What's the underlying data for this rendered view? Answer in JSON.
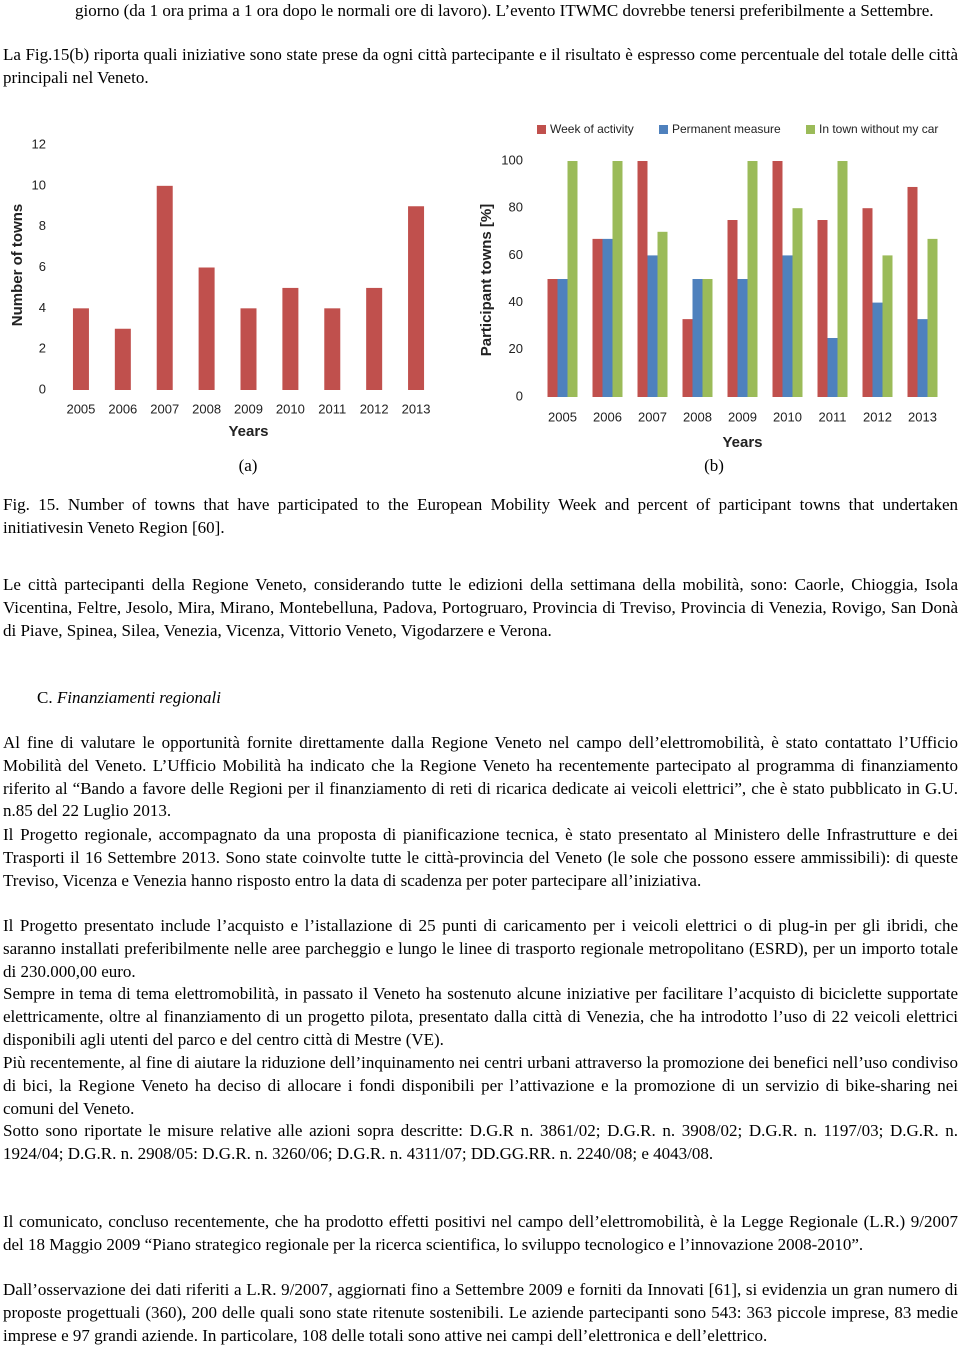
{
  "document": {
    "paragraphs_top": [
      "giorno (da 1 ora prima a 1 ora dopo le normali ore di lavoro). L’evento ITWMC dovrebbe tenersi preferibilmente a Settembre.",
      "La Fig.15(b) riporta quali iniziative sono state prese da ogni città partecipante e il risultato è espresso come percentuale del totale delle città principali nel Veneto."
    ],
    "caption": "Fig. 15. Number of towns that have participated to the European Mobility Week and percent of participant towns that undertaken initiativesin Veneto Region [60].",
    "paragraph_cities": "Le città partecipanti della Regione Veneto, considerando tutte le edizioni della settimana della mobilità, sono: Caorle, Chioggia, Isola Vicentina, Feltre, Jesolo, Mira, Mirano, Montebelluna, Padova, Portogruaro, Provincia di Treviso, Provincia di Venezia, Rovigo, San Donà di Piave, Spinea, Silea, Venezia, Vicenza, Vittorio Veneto, Vigodarzere e Verona.",
    "heading": {
      "number": "C.",
      "title": "Finanziamenti regionali"
    },
    "paragraphs": [
      "Al fine di valutare le opportunità fornite direttamente dalla Regione Veneto nel campo dell’elettromobilità, è stato contattato l’Ufficio Mobilità del Veneto. L’Ufficio Mobilità ha indicato che la Regione Veneto ha recentemente partecipato al programma di finanziamento riferito al “Bando a favore delle Regioni per il finanziamento di reti di ricarica dedicate ai veicoli elettrici”, che è stato pubblicato in G.U. n.85 del 22 Luglio 2013.",
      "Il Progetto regionale, accompagnato da una proposta di pianificazione tecnica, è stato presentato al Ministero delle Infrastrutture e dei Trasporti il 16 Settembre 2013. Sono state coinvolte tutte le città-provincia del Veneto (le sole che possono essere ammissibili): di queste Treviso, Vicenza e Venezia hanno risposto entro la data di scadenza per poter partecipare all’iniziativa.",
      "Il Progetto presentato include l’acquisto e l’istallazione di 25 punti di caricamento per i veicoli elettrici o di plug-in per gli ibridi, che saranno installati preferibilmente nelle aree parcheggio e lungo le linee di trasporto regionale metropolitano (ESRD), per un importo totale di 230.000,00 euro.",
      "Sempre in tema di tema elettromobilità, in passato il Veneto ha sostenuto alcune iniziative per facilitare l’acquisto di biciclette supportate elettricamente, oltre al finanziamento di un progetto pilota, presentato dalla città di Venezia, che ha introdotto l’uso di 22 veicoli elettrici disponibili agli utenti del parco e del centro città di Mestre (VE).",
      "Più recentemente, al fine di aiutare la riduzione dell’inquinamento nei centri urbani attraverso la promozione dei benefici nell’uso condiviso di bici, la Regione Veneto ha deciso di allocare i fondi disponibili per l’attivazione e la promozione di un servizio di bike-sharing nei comuni del Veneto.",
      "Sotto sono riportate le misure relative alle azioni sopra descritte: D.G.R n. 3861/02; D.G.R. n. 3908/02; D.G.R. n. 1197/03; D.G.R. n. 1924/04; D.G.R. n. 2908/05: D.G.R. n. 3260/06; D.G.R. n. 4311/07; DD.GG.RR. n. 2240/08; e 4043/08.",
      "Il comunicato, concluso recentemente, che ha prodotto effetti positivi nel campo dell’elettromobilità, è la Legge Regionale (L.R.) 9/2007 del 18 Maggio 2009 “Piano strategico regionale per la ricerca scientifica, lo sviluppo tecnologico e l’innovazione 2008-2010”.",
      "Dall’osservazione dei dati riferiti a L.R. 9/2007, aggiornati fino a Settembre 2009 e forniti da Innovati [61], si evidenzia un gran numero di proposte progettuali (360), 200 delle quali sono state ritenute sostenibili. Le aziende partecipanti sono 543: 363 piccole imprese, 83 medie imprese e 97 grandi aziende. In particolare, 108 delle totali sono attive nei campi dell’elettronica e dell’elettrico."
    ]
  },
  "chart_data": [
    {
      "type": "bar",
      "caption": "(a)",
      "x_label": "Years",
      "y_label": "Number of towns",
      "categories": [
        "2005",
        "2006",
        "2007",
        "2008",
        "2009",
        "2010",
        "2011",
        "2012",
        "2013"
      ],
      "values": [
        4,
        3,
        10,
        6,
        4,
        5,
        4,
        5,
        9
      ],
      "color": "#c0504d",
      "ylim": [
        0,
        12
      ],
      "yticks": [
        0,
        2,
        4,
        6,
        8,
        10,
        12
      ]
    },
    {
      "type": "bar",
      "caption": "(b)",
      "x_label": "Years",
      "y_label": "Participant towns [%]",
      "categories": [
        "2005",
        "2006",
        "2007",
        "2008",
        "2009",
        "2010",
        "2011",
        "2012",
        "2013"
      ],
      "series": [
        {
          "name": "Week of activity",
          "color": "#c0504d",
          "values": [
            50,
            67,
            100,
            33,
            75,
            100,
            75,
            80,
            89
          ]
        },
        {
          "name": "Permanent measure",
          "color": "#4f81bd",
          "values": [
            50,
            67,
            60,
            50,
            50,
            60,
            25,
            40,
            33
          ]
        },
        {
          "name": "In town without my car",
          "color": "#9bbb59",
          "values": [
            100,
            100,
            70,
            50,
            100,
            80,
            100,
            60,
            67
          ]
        }
      ],
      "ylim": [
        0,
        100
      ],
      "yticks": [
        0,
        20,
        40,
        60,
        80,
        100
      ],
      "legend": "top"
    }
  ]
}
